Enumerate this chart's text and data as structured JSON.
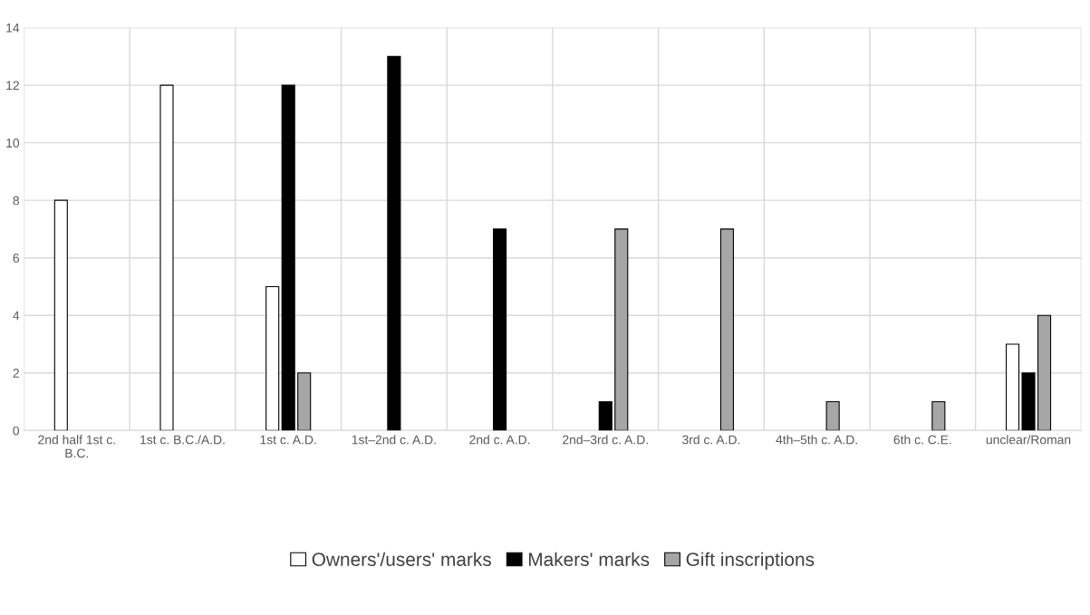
{
  "chart_data": {
    "type": "bar",
    "categories": [
      "2nd half 1st c.\nB.C.",
      "1st c. B.C./A.D.",
      "1st c. A.D.",
      "1st–2nd c. A.D.",
      "2nd c. A.D.",
      "2nd–3rd c. A.D.",
      "3rd c. A.D.",
      "4th–5th c. A.D.",
      "6th c. C.E.",
      "unclear/Roman"
    ],
    "series": [
      {
        "name": "Owners'/users' marks",
        "color": "#ffffff",
        "values": [
          8,
          12,
          5,
          null,
          null,
          null,
          null,
          null,
          null,
          3
        ]
      },
      {
        "name": "Makers' marks",
        "color": "#000000",
        "values": [
          null,
          null,
          12,
          13,
          7,
          1,
          null,
          null,
          null,
          2
        ]
      },
      {
        "name": "Gift inscriptions",
        "color": "#a6a6a6",
        "values": [
          null,
          null,
          2,
          null,
          null,
          7,
          7,
          1,
          1,
          4
        ]
      }
    ],
    "ylim": [
      0,
      14
    ],
    "yticks": [
      0,
      2,
      4,
      6,
      8,
      10,
      12,
      14
    ],
    "grid": true,
    "legend": "bottom"
  }
}
